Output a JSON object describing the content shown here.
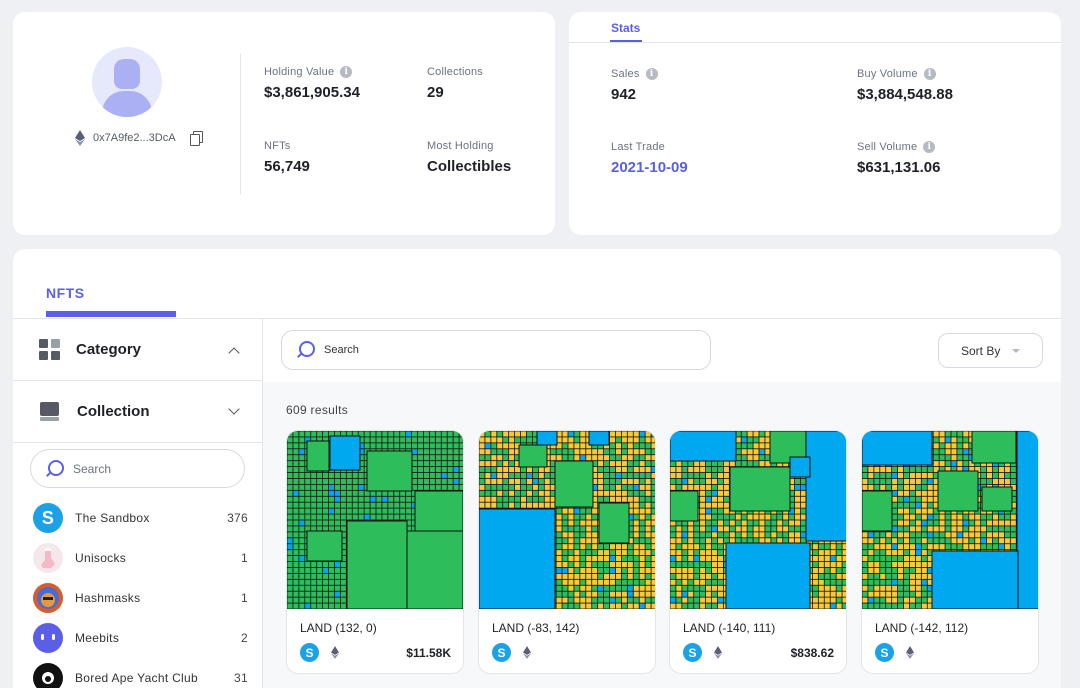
{
  "profile": {
    "address": "0x7A9fe2...3DcA",
    "holding_value_label": "Holding Value",
    "holding_value": "$3,861,905.34",
    "collections_label": "Collections",
    "collections": "29",
    "nfts_label": "NFTs",
    "nfts": "56,749",
    "most_holding_label": "Most Holding",
    "most_holding": "Collectibles"
  },
  "stats": {
    "tab": "Stats",
    "sales_label": "Sales",
    "sales": "942",
    "buy_volume_label": "Buy Volume",
    "buy_volume": "$3,884,548.88",
    "last_trade_label": "Last Trade",
    "last_trade": "2021-10-09",
    "sell_volume_label": "Sell Volume",
    "sell_volume": "$631,131.06"
  },
  "nfts_section": {
    "tab": "NFTS",
    "category_label": "Category",
    "collection_label": "Collection",
    "side_search_placeholder": "Search",
    "main_search_placeholder": "Search",
    "sort_label": "Sort By",
    "results": "609 results",
    "collections": [
      {
        "name": "The Sandbox",
        "count": "376",
        "icon": "sandbox-icon",
        "color": "#1ba1e8"
      },
      {
        "name": "Unisocks",
        "count": "1",
        "icon": "sock-icon",
        "color": "#f5e7ea"
      },
      {
        "name": "Hashmasks",
        "count": "1",
        "icon": "hashmask-icon",
        "color": "#d35f2c"
      },
      {
        "name": "Meebits",
        "count": "2",
        "icon": "meebits-icon",
        "color": "#5b5fe6"
      },
      {
        "name": "Bored Ape Yacht Club",
        "count": "31",
        "icon": "bayc-icon",
        "color": "#111111"
      }
    ],
    "cards": [
      {
        "name": "LAND (132, 0)",
        "price": "$11.58K"
      },
      {
        "name": "LAND (-83, 142)",
        "price": ""
      },
      {
        "name": "LAND (-140, 111)",
        "price": "$838.62"
      },
      {
        "name": "LAND (-142, 112)",
        "price": ""
      }
    ]
  },
  "colors": {
    "accent": "#5b5fe6",
    "land_green": "#2ebd5b",
    "land_yellow": "#f7c936",
    "land_blue": "#00a8f0"
  }
}
